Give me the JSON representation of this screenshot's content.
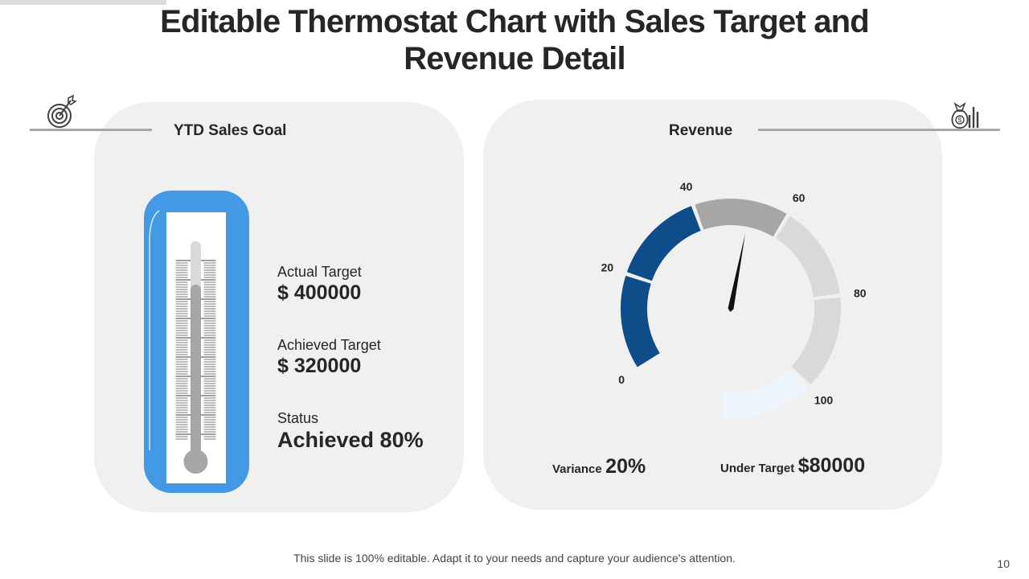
{
  "slide": {
    "title_line1": "Editable Thermostat Chart with Sales Target and",
    "title_line2": "Revenue Detail",
    "footer": "This slide is 100% editable. Adapt it to your needs and capture your audience's attention.",
    "page_number": "10"
  },
  "colors": {
    "thermometer_frame": "#4499e6",
    "gauge_dark_blue": "#0f4d8a",
    "gauge_mid_gray": "#a6a6a6",
    "gauge_light_gray": "#d9d9d9",
    "gauge_pale_blue": "#eef4fb",
    "panel_bg": "#f0f0f0"
  },
  "left_panel": {
    "heading": "YTD Sales Goal",
    "icon": "target-dart-icon",
    "actual_label": "Actual Target",
    "actual_value": "$ 400000",
    "achieved_label": "Achieved Target",
    "achieved_value": "$ 320000",
    "status_label": "Status",
    "status_value": "Achieved 80%",
    "thermometer_fill_fraction": 0.8
  },
  "right_panel": {
    "heading": "Revenue",
    "icon": "money-bag-chart-icon",
    "variance_label": "Variance",
    "variance_value": "20%",
    "under_target_label": "Under Target",
    "under_target_value": "$80000"
  },
  "chart_data": {
    "type": "gauge",
    "title": "Revenue",
    "range": [
      0,
      100
    ],
    "ticks": [
      "0",
      "20",
      "40",
      "60",
      "80",
      "100"
    ],
    "tick_values": [
      0,
      20,
      40,
      60,
      80,
      100
    ],
    "segments": [
      {
        "from": 0,
        "to": 20,
        "color": "#0f4d8a"
      },
      {
        "from": 20,
        "to": 40,
        "color": "#0f4d8a"
      },
      {
        "from": 40,
        "to": 60,
        "color": "#a6a6a6"
      },
      {
        "from": 60,
        "to": 80,
        "color": "#d9d9d9"
      },
      {
        "from": 80,
        "to": 100,
        "color": "#d9d9d9"
      },
      {
        "from": 100,
        "to": 120,
        "color": "#eef4fb"
      }
    ],
    "needle_value": 52
  }
}
